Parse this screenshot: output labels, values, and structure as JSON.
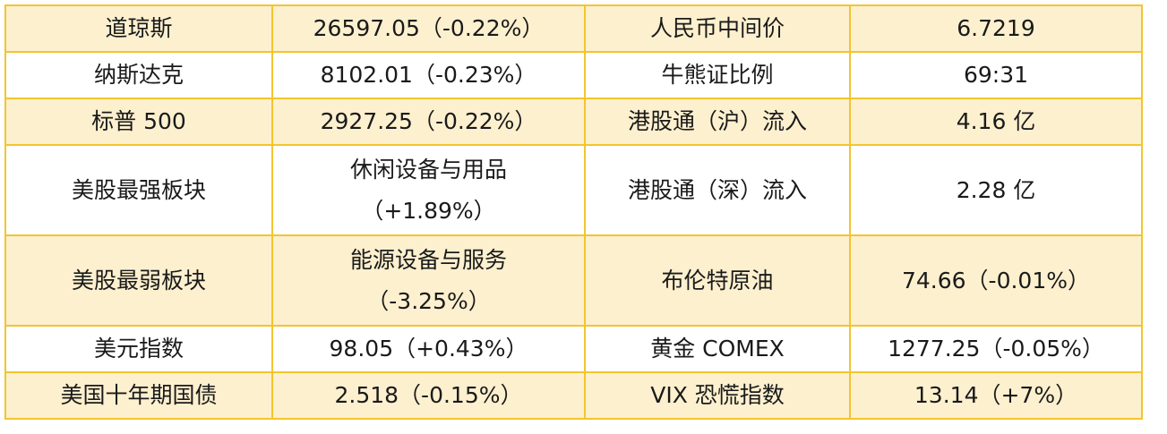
{
  "table": {
    "colors": {
      "border": "#f2c52e",
      "shade": "#fdf0cf",
      "plain": "#ffffff"
    },
    "rows": [
      {
        "shade": true,
        "label1": "道琼斯",
        "value1": "26597.05（-0.22%）",
        "label2": "人民币中间价",
        "value2": "6.7219"
      },
      {
        "shade": false,
        "label1": "纳斯达克",
        "value1": "8102.01（-0.23%）",
        "label2": "牛熊证比例",
        "value2": "69:31"
      },
      {
        "shade": true,
        "label1": "标普 500",
        "value1": "2927.25（-0.22%）",
        "label2": "港股通（沪）流入",
        "value2": "4.16 亿"
      },
      {
        "shade": false,
        "label1": "美股最强板块",
        "value1_line1": "休闲设备与用品",
        "value1_line2": "（+1.89%）",
        "label2": "港股通（深）流入",
        "value2": "2.28 亿"
      },
      {
        "shade": true,
        "label1": "美股最弱板块",
        "value1_line1": "能源设备与服务",
        "value1_line2": "（-3.25%）",
        "label2": "布伦特原油",
        "value2": "74.66（-0.01%）"
      },
      {
        "shade": false,
        "label1": "美元指数",
        "value1": "98.05（+0.43%）",
        "label2": "黄金 COMEX",
        "value2": "1277.25（-0.05%）"
      },
      {
        "shade": true,
        "label1": "美国十年期国债",
        "value1": "2.518（-0.15%）",
        "label2": "VIX 恐慌指数",
        "value2": "13.14（+7%）"
      }
    ]
  }
}
